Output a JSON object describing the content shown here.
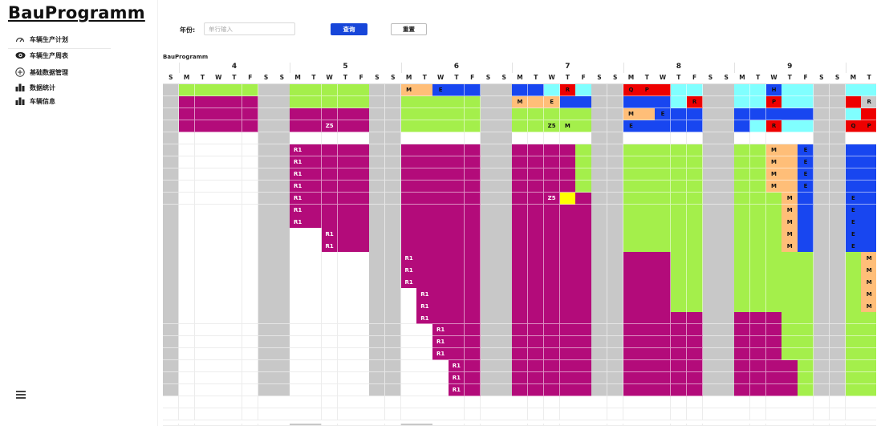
{
  "app": {
    "title": "BauProgramm"
  },
  "sidebar": {
    "items": [
      {
        "label": "车辆生产计划",
        "icon": "dashboard-gauge-icon"
      },
      {
        "label": "车辆生产周表",
        "icon": "eye-icon"
      },
      {
        "label": "基础数据管理",
        "icon": "plus-circle-icon"
      },
      {
        "label": "数据统计",
        "icon": "bar-chart-icon"
      },
      {
        "label": "车辆信息",
        "icon": "bar-chart-icon"
      }
    ],
    "menu_toggle_icon": "hamburger-menu-icon"
  },
  "filter": {
    "year_label": "年份:",
    "year_value": "",
    "year_placeholder": "单行输入",
    "query_label": "查询",
    "reset_label": "重置"
  },
  "gantt": {
    "title": "BauProgramm",
    "first_partial_day": "S",
    "weeks": [
      "4",
      "5",
      "6",
      "7",
      "8",
      "9"
    ],
    "days": [
      "M",
      "T",
      "W",
      "T",
      "F",
      "S",
      "S"
    ],
    "trailing_days": [
      "M",
      "T"
    ],
    "colors": {
      "green": "#a4ef4b",
      "magenta": "#b30b7a",
      "weekend": "#c8c8c8",
      "orange": "#ffbe78",
      "blue": "#1846f0",
      "cyan": "#80ffff",
      "red": "#ee0000",
      "yellow": "#ffff00",
      "black": "#000000",
      "white": "#ffffff"
    },
    "rows": [
      "_gggggGGgggggGGooBBBGGBBCRCGGRRRCCGGCCBCCGGCC_",
      "_MMMMMGGgggggGGgggggGGoooBBGGBBBCRGGCCRCCGGR__",
      "_MMMMMGGMMMMMGGgggggGGgggggGGooBBBGGBBBBBGGCRC",
      "_MMMMMGGMMMMMGGgggggGGgggggGGBBBBBGGBCRCCGGRRB",
      "_wwwwwGGwwwwwGGwwwwwGGwwwwwGGwwwwwGGwwwwwGGwww",
      "_wwwwwGGMMMMMGGMMMMMGGMMMMgGGgggggGGggoobGGBBB",
      "_wwwwwGGMMMMMGGMMMMMGGMMMMgGGgggggGGggoobGGBBB",
      "_wwwwwGGMMMMMGGMMMMMGGMMMMgGGgggggGGggoobGGBBB",
      "_wwwwwGGMMMMMGGMMMMMGGMMMMgGGgggggGGggoobGGBBB",
      "_wwwwwGGMMMMMGGMMMMMGGMMMYMGGgggggGGgggoBGGBBB",
      "_wwwwwGGMMMMMGGMMMMMGGMMMMMGGgggggGGgggoBGGBBB",
      "_wwwwwGGMMMMMGGMMMMMGGMMMMMGGgggggGGgggoBGGBBB",
      "_wwwwwGGwwMMMGGMMMMMGGMMMMMGGgggggGGgggoBGGBBB",
      "_wwwwwGGwwMMMGGMMMMMGGMMMMMGGgggggGGgggoBGGBBB",
      "_wwwwwGGwwwwwGGMMMMMGGMMMMMGGMMMggGGgggggGGgoB",
      "_wwwwwGGwwwwwGGMMMMMGGMMMMMGGMMMggGGgggggGGgoB",
      "_wwwwwGGwwwwwGGMMMMMGGMMMMMGGMMMggGGgggggGGgoB",
      "_wwwwwGGwwwwwGGwMMMMGGMMMMMGGMMMggGGgggggGGgoB",
      "_wwwwwGGwwwwwGGwMMMMGGMMMMMGGMMMggGGgggggGGgoB",
      "_wwwwwGGwwwwwGGwMMMMGGMMMMMGGMMMMMGGMMMggGGggg",
      "_wwwwwGGwwwwwGGwwMMMGGMMMMMGGMMMMMGGMMMggGGggg",
      "_wwwwwGGwwwwwGGwwMMMGGMMMMMGGMMMMMGGMMMggGGggg",
      "_wwwwwGGwwwwwGGwwMMMGGMMMMMGGMMMMMGGMMMggGGggg",
      "_wwwwwGGwwwwwGGwwwMMGGMMMMMGGMMMMMGGMMMMgGGggg",
      "_wwwwwGGwwwwwGGwwwMMGGMMMMMGGMMMMMGGMMMMgGGggg",
      "_wwwwwGGwwwwwGGwwwMMGGMMMMMGGMMMMMGGMMMMgGGggg"
    ],
    "labels": [
      {
        "row": 0,
        "col": 15,
        "text": "M"
      },
      {
        "row": 0,
        "col": 17,
        "text": "E"
      },
      {
        "row": 0,
        "col": 25,
        "text": "R"
      },
      {
        "row": 0,
        "col": 29,
        "text": "Q"
      },
      {
        "row": 0,
        "col": 30,
        "text": "P"
      },
      {
        "row": 0,
        "col": 38,
        "text": "H"
      },
      {
        "row": 1,
        "col": 22,
        "text": "M"
      },
      {
        "row": 1,
        "col": 24,
        "text": "E"
      },
      {
        "row": 1,
        "col": 33,
        "text": "R"
      },
      {
        "row": 1,
        "col": 38,
        "text": "P"
      },
      {
        "row": 1,
        "col": 44,
        "text": "R"
      },
      {
        "row": 2,
        "col": 29,
        "text": "M"
      },
      {
        "row": 2,
        "col": 31,
        "text": "E"
      },
      {
        "row": 3,
        "col": 10,
        "text": "Z5"
      },
      {
        "row": 3,
        "col": 24,
        "text": "Z5"
      },
      {
        "row": 3,
        "col": 25,
        "text": "M"
      },
      {
        "row": 3,
        "col": 29,
        "text": "E"
      },
      {
        "row": 3,
        "col": 38,
        "text": "R"
      },
      {
        "row": 3,
        "col": 43,
        "text": "Q"
      },
      {
        "row": 3,
        "col": 44,
        "text": "P"
      },
      {
        "row": 5,
        "col": 8,
        "text": "R1"
      },
      {
        "row": 5,
        "col": 38,
        "text": "M"
      },
      {
        "row": 5,
        "col": 40,
        "text": "E"
      },
      {
        "row": 6,
        "col": 8,
        "text": "R1"
      },
      {
        "row": 6,
        "col": 38,
        "text": "M"
      },
      {
        "row": 6,
        "col": 40,
        "text": "E"
      },
      {
        "row": 7,
        "col": 8,
        "text": "R1"
      },
      {
        "row": 7,
        "col": 38,
        "text": "M"
      },
      {
        "row": 7,
        "col": 40,
        "text": "E"
      },
      {
        "row": 8,
        "col": 8,
        "text": "R1"
      },
      {
        "row": 8,
        "col": 38,
        "text": "M"
      },
      {
        "row": 8,
        "col": 40,
        "text": "E"
      },
      {
        "row": 9,
        "col": 8,
        "text": "R1"
      },
      {
        "row": 9,
        "col": 24,
        "text": "Z5"
      },
      {
        "row": 9,
        "col": 39,
        "text": "M"
      },
      {
        "row": 9,
        "col": 43,
        "text": "E"
      },
      {
        "row": 10,
        "col": 8,
        "text": "R1"
      },
      {
        "row": 10,
        "col": 39,
        "text": "M"
      },
      {
        "row": 10,
        "col": 43,
        "text": "E"
      },
      {
        "row": 11,
        "col": 8,
        "text": "R1"
      },
      {
        "row": 11,
        "col": 39,
        "text": "M"
      },
      {
        "row": 11,
        "col": 43,
        "text": "E"
      },
      {
        "row": 12,
        "col": 10,
        "text": "R1"
      },
      {
        "row": 12,
        "col": 39,
        "text": "M"
      },
      {
        "row": 12,
        "col": 43,
        "text": "E"
      },
      {
        "row": 13,
        "col": 10,
        "text": "R1"
      },
      {
        "row": 13,
        "col": 39,
        "text": "M"
      },
      {
        "row": 13,
        "col": 43,
        "text": "E"
      },
      {
        "row": 14,
        "col": 15,
        "text": "R1"
      },
      {
        "row": 14,
        "col": 44,
        "text": "M"
      },
      {
        "row": 15,
        "col": 15,
        "text": "R1"
      },
      {
        "row": 15,
        "col": 44,
        "text": "M"
      },
      {
        "row": 16,
        "col": 15,
        "text": "R1"
      },
      {
        "row": 16,
        "col": 44,
        "text": "M"
      },
      {
        "row": 17,
        "col": 16,
        "text": "R1"
      },
      {
        "row": 17,
        "col": 44,
        "text": "M"
      },
      {
        "row": 18,
        "col": 16,
        "text": "R1"
      },
      {
        "row": 18,
        "col": 44,
        "text": "M"
      },
      {
        "row": 19,
        "col": 16,
        "text": "R1"
      },
      {
        "row": 20,
        "col": 17,
        "text": "R1"
      },
      {
        "row": 21,
        "col": 17,
        "text": "R1"
      },
      {
        "row": 22,
        "col": 17,
        "text": "R1"
      },
      {
        "row": 23,
        "col": 18,
        "text": "R1"
      },
      {
        "row": 24,
        "col": 18,
        "text": "R1"
      },
      {
        "row": 25,
        "col": 18,
        "text": "R1"
      }
    ]
  }
}
